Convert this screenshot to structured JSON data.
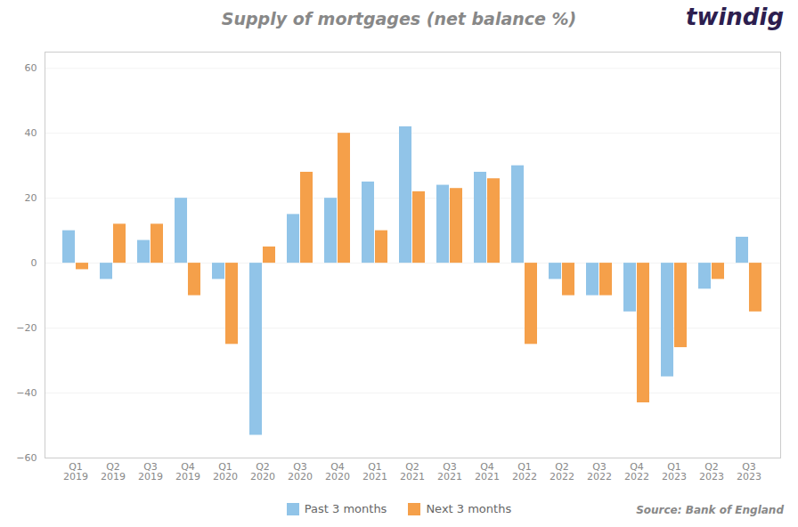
{
  "chart_data": {
    "type": "bar",
    "title": "Supply of mortgages (net balance %)",
    "categories": [
      "Q1\n2019",
      "Q2\n2019",
      "Q3\n2019",
      "Q4\n2019",
      "Q1\n2020",
      "Q2\n2020",
      "Q3\n2020",
      "Q4\n2020",
      "Q1\n2021",
      "Q2\n2021",
      "Q3\n2021",
      "Q4\n2021",
      "Q1\n2022",
      "Q2\n2022",
      "Q3\n2022",
      "Q4\n2022",
      "Q1\n2023",
      "Q2\n2023",
      "Q3\n2023"
    ],
    "series": [
      {
        "name": "Past 3 months",
        "color": "#91C4E8",
        "values": [
          10,
          -5,
          7,
          20,
          -5,
          -53,
          15,
          20,
          25,
          42,
          24,
          28,
          30,
          -5,
          -10,
          -15,
          -35,
          -8,
          8
        ]
      },
      {
        "name": "Next 3 months",
        "color": "#F5A04A",
        "values": [
          -2,
          12,
          12,
          -10,
          -25,
          5,
          28,
          40,
          10,
          22,
          23,
          26,
          -25,
          -10,
          -10,
          -43,
          -26,
          -5,
          -15
        ]
      }
    ],
    "ylim": [
      -60,
      65
    ],
    "yticks": [
      -60,
      -40,
      -20,
      0,
      20,
      40,
      60
    ],
    "grid": true,
    "legend": "bottom",
    "annotations": [
      "Source: Bank of England",
      "twindig"
    ]
  }
}
